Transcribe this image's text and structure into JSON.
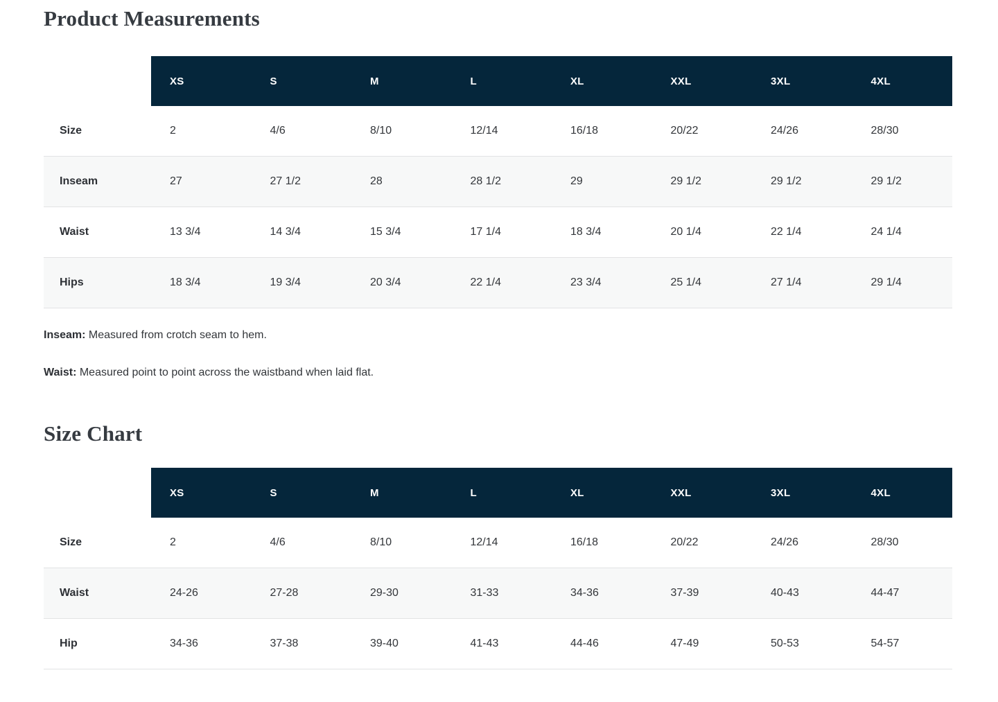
{
  "colors": {
    "header_bg": "#05263b",
    "stripe_bg": "#f7f8f8",
    "row_border": "#e2e3e4",
    "title_color": "#363b41",
    "header_text": "#ffffff",
    "body_text": "#33363a"
  },
  "product_measurements": {
    "title": "Product Measurements",
    "columns": [
      "XS",
      "S",
      "M",
      "L",
      "XL",
      "XXL",
      "3XL",
      "4XL"
    ],
    "rows": [
      {
        "label": "Size",
        "values": [
          "2",
          "4/6",
          "8/10",
          "12/14",
          "16/18",
          "20/22",
          "24/26",
          "28/30"
        ]
      },
      {
        "label": "Inseam",
        "values": [
          "27",
          "27 1/2",
          "28",
          "28 1/2",
          "29",
          "29 1/2",
          "29 1/2",
          "29 1/2"
        ]
      },
      {
        "label": "Waist",
        "values": [
          "13 3/4",
          "14 3/4",
          "15 3/4",
          "17 1/4",
          "18 3/4",
          "20 1/4",
          "22 1/4",
          "24 1/4"
        ]
      },
      {
        "label": "Hips",
        "values": [
          "18 3/4",
          "19 3/4",
          "20 3/4",
          "22 1/4",
          "23 3/4",
          "25 1/4",
          "27 1/4",
          "29 1/4"
        ]
      }
    ],
    "notes": [
      {
        "term": "Inseam:",
        "text": " Measured from crotch seam to hem."
      },
      {
        "term": "Waist:",
        "text": " Measured point to point across the waistband when laid flat."
      }
    ]
  },
  "size_chart": {
    "title": "Size Chart",
    "columns": [
      "XS",
      "S",
      "M",
      "L",
      "XL",
      "XXL",
      "3XL",
      "4XL"
    ],
    "rows": [
      {
        "label": "Size",
        "values": [
          "2",
          "4/6",
          "8/10",
          "12/14",
          "16/18",
          "20/22",
          "24/26",
          "28/30"
        ]
      },
      {
        "label": "Waist",
        "values": [
          "24-26",
          "27-28",
          "29-30",
          "31-33",
          "34-36",
          "37-39",
          "40-43",
          "44-47"
        ]
      },
      {
        "label": "Hip",
        "values": [
          "34-36",
          "37-38",
          "39-40",
          "41-43",
          "44-46",
          "47-49",
          "50-53",
          "54-57"
        ]
      }
    ]
  }
}
